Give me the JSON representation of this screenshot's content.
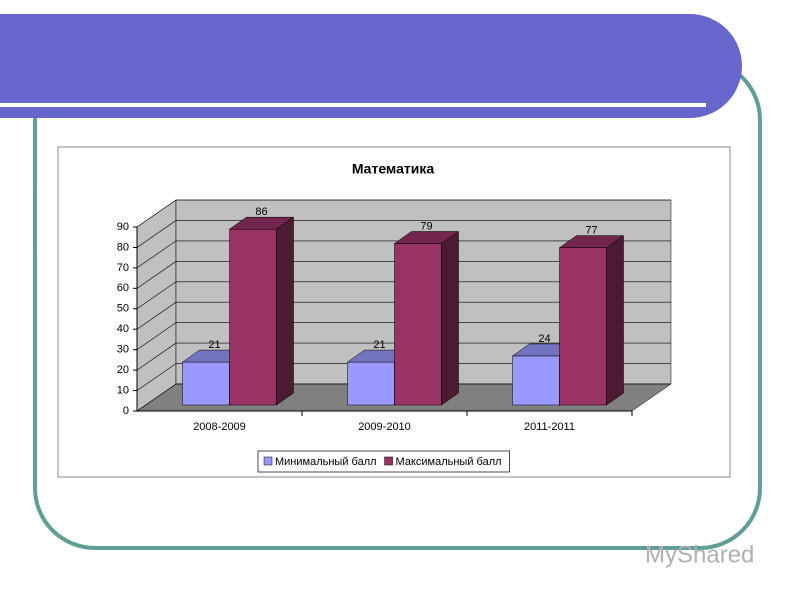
{
  "chart_data": {
    "type": "bar3d",
    "title": "Математика",
    "categories": [
      "2008-2009",
      "2009-2010",
      "2011-2011"
    ],
    "series": [
      {
        "name": "Минимальный балл",
        "color": "#9999ff",
        "values": [
          21,
          21,
          24
        ]
      },
      {
        "name": "Максимальный балл",
        "color": "#993366",
        "values": [
          86,
          79,
          77
        ]
      }
    ],
    "ylim": [
      0,
      90
    ],
    "yticks": [
      0,
      10,
      20,
      30,
      40,
      50,
      60,
      70,
      80,
      90
    ],
    "grid": true,
    "legend": "bottom"
  },
  "watermark": "MyShared"
}
